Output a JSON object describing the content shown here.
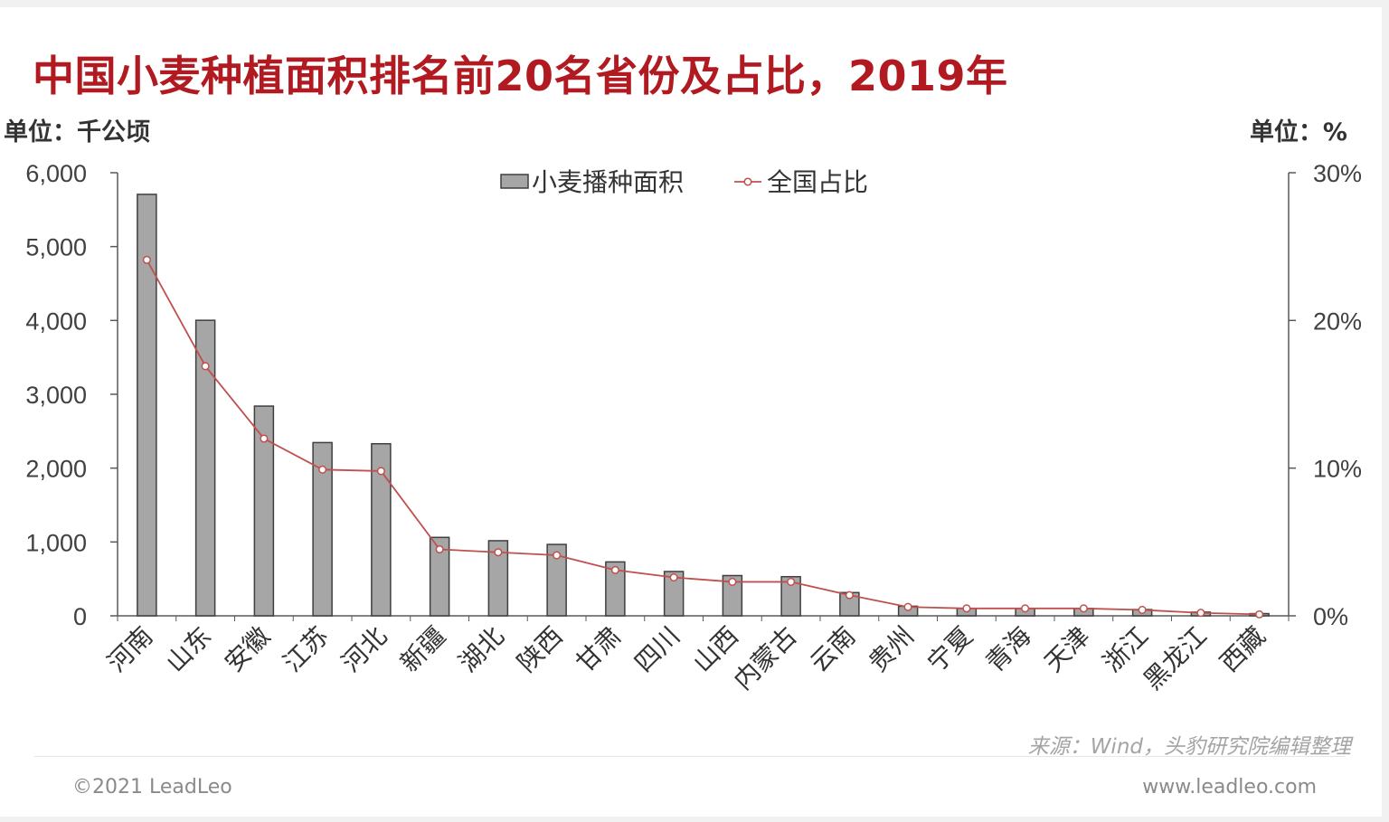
{
  "header": {
    "title": "中国小麦种植面积排名前20名省份及占比，2019年",
    "unit_left": "单位：千公顷",
    "unit_right": "单位：%"
  },
  "footer": {
    "source": "来源：Wind，头豹研究院编辑整理",
    "copyright": "©2021 LeadLeo",
    "website": "www.leadleo.com"
  },
  "colors": {
    "title": "#b01a20",
    "bar_fill": "#a6a6a6",
    "bar_stroke": "#3f3f3f",
    "line": "#c0504d",
    "axis": "#595959"
  },
  "chart_data": {
    "type": "bar",
    "categories": [
      "河南",
      "山东",
      "安徽",
      "江苏",
      "河北",
      "新疆",
      "湖北",
      "陕西",
      "甘肃",
      "四川",
      "山西",
      "内蒙古",
      "云南",
      "贵州",
      "宁夏",
      "青海",
      "天津",
      "浙江",
      "黑龙江",
      "西藏"
    ],
    "series": [
      {
        "name": "小麦播种面积",
        "type": "bar",
        "axis": "left",
        "values": [
          5707,
          4002,
          2840,
          2346,
          2330,
          1062,
          1017,
          967,
          730,
          600,
          545,
          530,
          315,
          130,
          100,
          100,
          100,
          85,
          50,
          30
        ]
      },
      {
        "name": "全国占比",
        "type": "line",
        "axis": "right",
        "values": [
          24.1,
          16.9,
          12.0,
          9.9,
          9.8,
          4.5,
          4.3,
          4.1,
          3.1,
          2.6,
          2.3,
          2.3,
          1.4,
          0.6,
          0.5,
          0.5,
          0.5,
          0.4,
          0.2,
          0.1
        ]
      }
    ],
    "y_left": {
      "min": 0,
      "max": 6000,
      "ticks": [
        "0",
        "1,000",
        "2,000",
        "3,000",
        "4,000",
        "5,000",
        "6,000"
      ]
    },
    "y_right": {
      "min": 0,
      "max": 30,
      "ticks": [
        "0%",
        "10%",
        "20%",
        "30%"
      ]
    },
    "legend_position": "top-center",
    "grid": false
  }
}
